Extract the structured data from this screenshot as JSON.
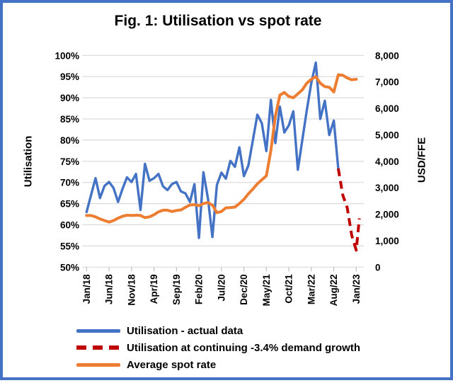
{
  "title": "Fig. 1: Utilisation vs spot rate",
  "colors": {
    "frame_border": "#4472C4",
    "utilisation_actual": "#4472C4",
    "utilisation_forecast": "#C00000",
    "spot_rate": "#ED7D31",
    "gridline": "#D9D9D9",
    "tick": "#BFBFBF",
    "text": "#000000",
    "background": "#FFFFFF"
  },
  "chart_data": {
    "type": "line",
    "title": "Fig. 1: Utilisation vs spot rate",
    "grid": "horizontal",
    "legend_position": "bottom-left",
    "left_axis": {
      "label": "Utilisation",
      "min": 50,
      "max": 100,
      "tick_labels": [
        "100%",
        "95%",
        "90%",
        "85%",
        "80%",
        "75%",
        "70%",
        "65%",
        "60%",
        "55%",
        "50%"
      ]
    },
    "right_axis": {
      "label": "USD/FFE",
      "min": 0,
      "max": 8000,
      "tick_labels": [
        "8,000",
        "7,000",
        "6,000",
        "5,000",
        "4,000",
        "3,000",
        "2,000",
        "1,000",
        "0"
      ]
    },
    "x_axis": {
      "start": "Jan/18",
      "end": "Jan/23",
      "months_span": 60,
      "tick_interval_months": 5,
      "tick_labels": [
        "Jan/18",
        "Jun/18",
        "Nov/18",
        "Apr/19",
        "Sep/19",
        "Feb/20",
        "Jul/20",
        "Dec/20",
        "May/21",
        "Oct/21",
        "Mar/22",
        "Aug/22",
        "Jan/23"
      ]
    },
    "series": [
      {
        "name": "Utilisation - actual data",
        "axis": "left",
        "color": "#4472C4",
        "style": "solid",
        "x_start_month": 0,
        "values": [
          63,
          67,
          71,
          66.3,
          69.2,
          70.1,
          68.7,
          65.4,
          68.5,
          71.2,
          70.1,
          72,
          63.5,
          74.4,
          70.4,
          71,
          72,
          69.1,
          68.2,
          69.6,
          70.1,
          67.9,
          67.4,
          65.4,
          69.6,
          56.9,
          72.4,
          66.2,
          57.1,
          69.4,
          72.3,
          70.9,
          75.1,
          73.7,
          78.3,
          71.5,
          74,
          80,
          86,
          84,
          77.4,
          89.5,
          79.3,
          87.9,
          81.8,
          83.5,
          86.8,
          73,
          80,
          87,
          93.5,
          98.3,
          85,
          89.3,
          81.2,
          84.6,
          73.3
        ]
      },
      {
        "name": "Utilisation at continuing -3.4% demand growth",
        "axis": "left",
        "color": "#C00000",
        "style": "dashed",
        "x": [
          56,
          57,
          58,
          59,
          60,
          60.7
        ],
        "values": [
          73.3,
          67,
          64,
          57.5,
          54,
          61.5
        ]
      },
      {
        "name": "Average spot rate",
        "axis": "right",
        "color": "#ED7D31",
        "style": "solid",
        "x_start_month": 0,
        "values": [
          1950,
          1950,
          1900,
          1820,
          1760,
          1700,
          1760,
          1850,
          1920,
          1960,
          1950,
          1960,
          1950,
          1870,
          1900,
          1980,
          2090,
          2150,
          2150,
          2100,
          2140,
          2160,
          2260,
          2350,
          2360,
          2320,
          2400,
          2440,
          2340,
          2060,
          2100,
          2240,
          2250,
          2270,
          2400,
          2560,
          2770,
          2950,
          3150,
          3300,
          3450,
          4400,
          5700,
          6500,
          6600,
          6450,
          6400,
          6550,
          6700,
          6950,
          7100,
          7200,
          6950,
          6820,
          6800,
          6620,
          7270,
          7250,
          7150,
          7080,
          7100
        ]
      }
    ]
  }
}
